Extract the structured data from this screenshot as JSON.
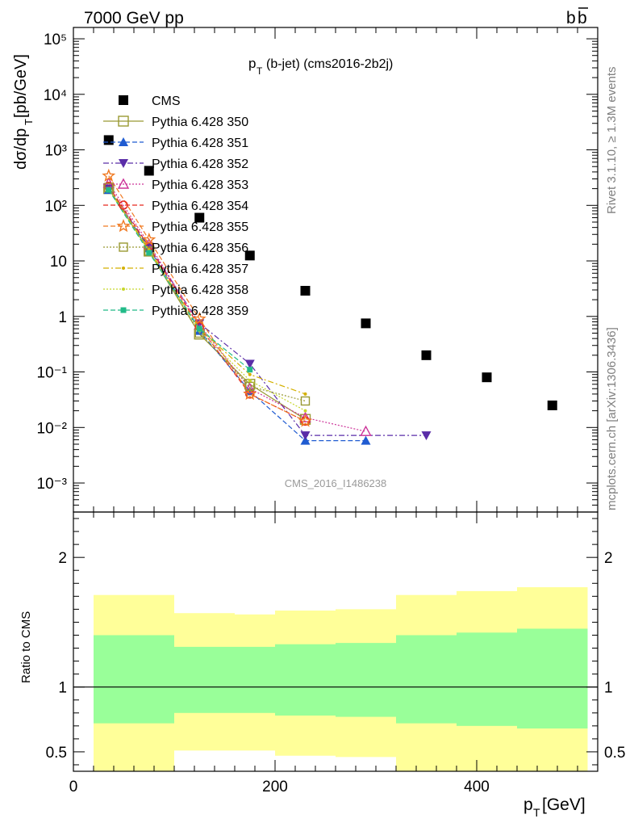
{
  "header": {
    "left": "7000 GeV pp",
    "right": "b",
    "right_bar": "b"
  },
  "side_labels": {
    "rivet": "Rivet 3.1.10, ≥ 1.3M events",
    "mcplots": "mcplots.cern.ch [arXiv:1306.3436]"
  },
  "watermark": "CMS_2016_I1486238",
  "plot_title": {
    "main": "p",
    "sub": "T",
    "rest": "(b-jet) (cms2016-2b2j)"
  },
  "upper_y_label": {
    "a": "dσ/dp",
    "sub": "T",
    "b": " [pb/GeV]"
  },
  "x_label": {
    "a": "p",
    "sub": "T",
    "b": " [GeV]"
  },
  "ratio_label": "Ratio to CMS",
  "chart_data": [
    {
      "type": "scatter",
      "panel": "main",
      "yscale": "log",
      "xlim": [
        0,
        520
      ],
      "ylim": [
        0.0003,
        160000
      ],
      "y_ticks": [
        "10^-3",
        "10^-2",
        "10^-1",
        "1",
        "10",
        "10^2",
        "10^3",
        "10^4",
        "10^5"
      ],
      "x_ticks": [
        "0",
        "200",
        "400"
      ],
      "legend_position": "top-left",
      "series": [
        {
          "name": "CMS",
          "color": "#000000",
          "marker": "filled-square",
          "x": [
            35,
            75,
            125,
            175,
            230,
            290,
            350,
            410,
            475
          ],
          "y": [
            1500,
            420,
            60,
            12.5,
            2.9,
            0.75,
            0.2,
            0.08,
            0.025
          ]
        },
        {
          "name": "Pythia 6.428 350",
          "color": "#999933",
          "marker": "open-square",
          "dash": "solid",
          "x": [
            35,
            75,
            125,
            175,
            230
          ],
          "y": [
            200,
            15,
            0.48,
            0.06,
            0.014
          ]
        },
        {
          "name": "Pythia 6.428 351",
          "color": "#1f5bd1",
          "marker": "filled-triangle-up",
          "dash": "dashed",
          "x": [
            35,
            75,
            125,
            175,
            230,
            290
          ],
          "y": [
            190,
            17,
            0.55,
            0.045,
            0.0058,
            0.0058
          ]
        },
        {
          "name": "Pythia 6.428 352",
          "color": "#5a2da8",
          "marker": "filled-triangle-down",
          "dash": "dashdot",
          "x": [
            35,
            75,
            125,
            175,
            230,
            350
          ],
          "y": [
            200,
            18,
            0.75,
            0.14,
            0.0072,
            0.0072
          ]
        },
        {
          "name": "Pythia 6.428 353",
          "color": "#cc3399",
          "marker": "open-triangle-up",
          "dash": "dotted",
          "x": [
            35,
            75,
            125,
            175,
            230,
            290
          ],
          "y": [
            250,
            20,
            0.7,
            0.05,
            0.015,
            0.0085
          ]
        },
        {
          "name": "Pythia 6.428 354",
          "color": "#e8281e",
          "marker": "open-circle",
          "dash": "dashed",
          "x": [
            35,
            75,
            125,
            175,
            230
          ],
          "y": [
            220,
            18,
            0.65,
            0.04,
            0.013
          ]
        },
        {
          "name": "Pythia 6.428 355",
          "color": "#f07a22",
          "marker": "open-star",
          "dash": "dashed",
          "x": [
            35,
            75,
            125,
            175,
            230
          ],
          "y": [
            340,
            24,
            0.9,
            0.04,
            0.013
          ]
        },
        {
          "name": "Pythia 6.428 356",
          "color": "#999933",
          "marker": "open-square-small",
          "dash": "dotted",
          "x": [
            35,
            75,
            125,
            175,
            230
          ],
          "y": [
            210,
            15,
            0.5,
            0.055,
            0.03
          ]
        },
        {
          "name": "Pythia 6.428 357",
          "color": "#d4b000",
          "marker": "small-dot",
          "dash": "dashdot",
          "x": [
            35,
            75,
            125,
            175,
            230
          ],
          "y": [
            200,
            16,
            0.6,
            0.09,
            0.04
          ]
        },
        {
          "name": "Pythia 6.428 358",
          "color": "#c7d62a",
          "marker": "small-dot",
          "dash": "dotted",
          "x": [
            35,
            75,
            125,
            175,
            230
          ],
          "y": [
            190,
            15,
            0.55,
            0.07,
            0.02
          ]
        },
        {
          "name": "Pythia 6.428 359",
          "color": "#22bb88",
          "marker": "filled-square-small",
          "dash": "dashed",
          "x": [
            35,
            75,
            125,
            175
          ],
          "y": [
            190,
            14,
            0.6,
            0.11
          ]
        }
      ]
    },
    {
      "type": "area",
      "panel": "ratio",
      "xlim": [
        0,
        520
      ],
      "ylim": [
        0.35,
        2.35
      ],
      "y_ticks": [
        "0.5",
        "1",
        "2"
      ],
      "x_ticks": [
        "0",
        "200",
        "400"
      ],
      "reference_line": 1,
      "bins": [
        {
          "x": [
            20,
            100
          ],
          "yellow": [
            0.35,
            1.71
          ],
          "green": [
            0.72,
            1.4
          ]
        },
        {
          "x": [
            100,
            160
          ],
          "yellow": [
            0.51,
            1.57
          ],
          "green": [
            0.8,
            1.31
          ]
        },
        {
          "x": [
            160,
            200
          ],
          "yellow": [
            0.51,
            1.56
          ],
          "green": [
            0.8,
            1.31
          ]
        },
        {
          "x": [
            200,
            260
          ],
          "yellow": [
            0.47,
            1.59
          ],
          "green": [
            0.78,
            1.33
          ]
        },
        {
          "x": [
            260,
            320
          ],
          "yellow": [
            0.46,
            1.6
          ],
          "green": [
            0.77,
            1.34
          ]
        },
        {
          "x": [
            320,
            380
          ],
          "yellow": [
            0.35,
            1.71
          ],
          "green": [
            0.72,
            1.4
          ]
        },
        {
          "x": [
            380,
            440
          ],
          "yellow": [
            0.35,
            1.74
          ],
          "green": [
            0.7,
            1.42
          ]
        },
        {
          "x": [
            440,
            510
          ],
          "yellow": [
            0.35,
            1.77
          ],
          "green": [
            0.68,
            1.45
          ]
        }
      ],
      "colors": {
        "yellow": "#ffff99",
        "green": "#99ff99"
      }
    }
  ]
}
